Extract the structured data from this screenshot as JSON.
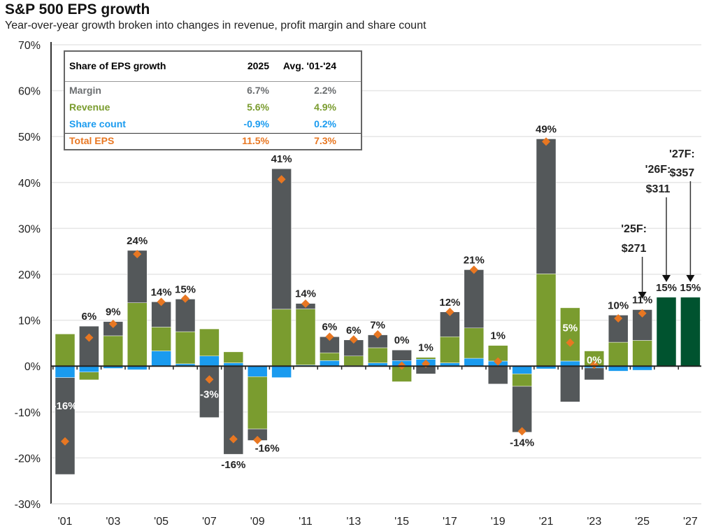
{
  "title": "S&P 500 EPS growth",
  "subtitle": "Year-over-year growth broken into changes in revenue, profit margin and share count",
  "colors": {
    "margin": "#54585a",
    "revenue": "#7a9c2f",
    "share_count": "#1a9bef",
    "total_eps": "#e87722",
    "forecast": "#00532f"
  },
  "table": {
    "header": [
      "Share of EPS growth",
      "2025",
      "Avg. '01-'24"
    ],
    "rows": [
      {
        "label": "Margin",
        "v2025": "6.7%",
        "avg": "2.2%",
        "color": "#6b6e70"
      },
      {
        "label": "Revenue",
        "v2025": "5.6%",
        "avg": "4.9%",
        "color": "#7a9c2f"
      },
      {
        "label": "Share count",
        "v2025": "-0.9%",
        "avg": "0.2%",
        "color": "#1a9bef"
      },
      {
        "label": "Total EPS",
        "v2025": "11.5%",
        "avg": "7.3%",
        "color": "#e87722"
      }
    ]
  },
  "chart_data": {
    "type": "bar",
    "stacked": true,
    "ylim": [
      -30,
      70
    ],
    "yticks": [
      "-30%",
      "-20%",
      "-10%",
      "0%",
      "10%",
      "20%",
      "30%",
      "40%",
      "50%",
      "60%",
      "70%"
    ],
    "ytick_values": [
      -30,
      -20,
      -10,
      0,
      10,
      20,
      30,
      40,
      50,
      60,
      70
    ],
    "grid": true,
    "categories": [
      "'01",
      "'02",
      "'03",
      "'04",
      "'05",
      "'06",
      "'07",
      "'08",
      "'09",
      "'10",
      "'11",
      "'12",
      "'13",
      "'14",
      "'15",
      "'16",
      "'17",
      "'18",
      "'19",
      "'20",
      "'21",
      "'22",
      "'23",
      "'24",
      "'25",
      "'26",
      "'27"
    ],
    "xtick_labels": [
      "'01",
      "'03",
      "'05",
      "'07",
      "'09",
      "'11",
      "'13",
      "'15",
      "'17",
      "'19",
      "'21",
      "'23",
      "'25",
      "'27"
    ],
    "series": [
      {
        "key": "share_count",
        "values": [
          -2.5,
          -1.3,
          -0.5,
          -0.8,
          3.3,
          0.5,
          2.2,
          0.7,
          -2.3,
          -2.5,
          0.25,
          1.2,
          0.1,
          0.7,
          1.2,
          1.5,
          0.7,
          1.7,
          1.1,
          -1.7,
          -0.6,
          1.1,
          -0.4,
          -1.1,
          -0.9,
          null,
          null
        ]
      },
      {
        "key": "revenue",
        "values": [
          7.0,
          -1.7,
          6.6,
          13.8,
          5.2,
          7.0,
          5.9,
          2.4,
          -11.4,
          12.4,
          12.2,
          1.7,
          2.1,
          3.3,
          -3.4,
          0.4,
          5.7,
          6.6,
          3.4,
          -2.7,
          20.1,
          11.6,
          3.3,
          5.2,
          5.6,
          null,
          null
        ]
      },
      {
        "key": "margin",
        "values": [
          -21.1,
          8.7,
          3.1,
          11.4,
          5.5,
          7.1,
          -11.2,
          -19.2,
          -2.5,
          30.6,
          1.2,
          3.5,
          3.5,
          2.8,
          2.3,
          -1.7,
          5.4,
          12.7,
          -3.9,
          -10.0,
          29.4,
          -7.8,
          -2.6,
          5.9,
          6.7,
          null,
          null
        ]
      },
      {
        "key": "forecast",
        "values": [
          null,
          null,
          null,
          null,
          null,
          null,
          null,
          null,
          null,
          null,
          null,
          null,
          null,
          null,
          null,
          null,
          null,
          null,
          null,
          null,
          null,
          null,
          null,
          null,
          null,
          15,
          15
        ]
      }
    ],
    "total_eps": [
      -16.4,
      6.2,
      9.2,
      24.4,
      14.0,
      14.7,
      -2.9,
      -15.9,
      -16.1,
      40.7,
      13.6,
      6.4,
      5.8,
      6.9,
      0.1,
      0.5,
      11.8,
      21.0,
      1.0,
      -14.2,
      48.9,
      5.1,
      0.3,
      10.4,
      11.5,
      null,
      null
    ],
    "data_labels": [
      "-16%",
      "6%",
      "9%",
      "24%",
      "14%",
      "15%",
      "-3%",
      "-16%",
      "-16%",
      "41%",
      "14%",
      "6%",
      "6%",
      "7%",
      "0%",
      "1%",
      "12%",
      "21%",
      "1%",
      "-14%",
      "49%",
      "5%",
      "0%",
      "10%",
      "11%",
      "15%",
      "15%"
    ],
    "annotations": [
      {
        "category": "'25",
        "line1": "'25F:",
        "line2": "$271"
      },
      {
        "category": "'26",
        "line1": "'26F:",
        "line2": "$311"
      },
      {
        "category": "'27",
        "line1": "'27F:",
        "line2": "$357"
      }
    ]
  }
}
